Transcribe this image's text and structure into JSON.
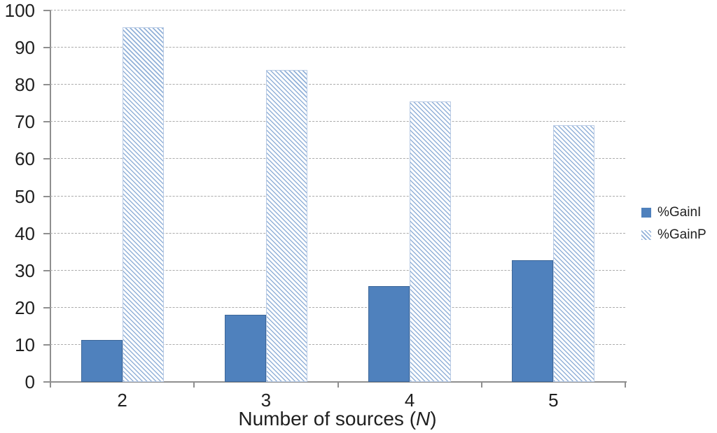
{
  "chart_data": {
    "type": "bar",
    "categories": [
      "2",
      "3",
      "4",
      "5"
    ],
    "series": [
      {
        "name": "%GainI",
        "style": "solid",
        "color": "#4F81BD",
        "values": [
          11.3,
          18.1,
          25.8,
          32.8
        ]
      },
      {
        "name": "%GainP",
        "style": "hatched",
        "color": "#95B3D7",
        "values": [
          95.4,
          83.9,
          75.6,
          69.2
        ]
      }
    ],
    "title": "",
    "xlabel": "Number of sources (N)",
    "xlabel_parts": {
      "prefix": "Number of sources (",
      "variable": "N",
      "suffix": ")"
    },
    "ylabel": "",
    "ylim": [
      0,
      100
    ],
    "ytick_step": 10,
    "ytick_labels": [
      "0",
      "10",
      "20",
      "30",
      "40",
      "50",
      "60",
      "70",
      "80",
      "90",
      "100"
    ],
    "grid": "horizontal-dashed",
    "legend_position": "right",
    "colors": {
      "gridline": "#ABABAB",
      "axis": "#8F8F8F",
      "text": "#1F1F1F",
      "bar_border": "#3D6799"
    }
  }
}
